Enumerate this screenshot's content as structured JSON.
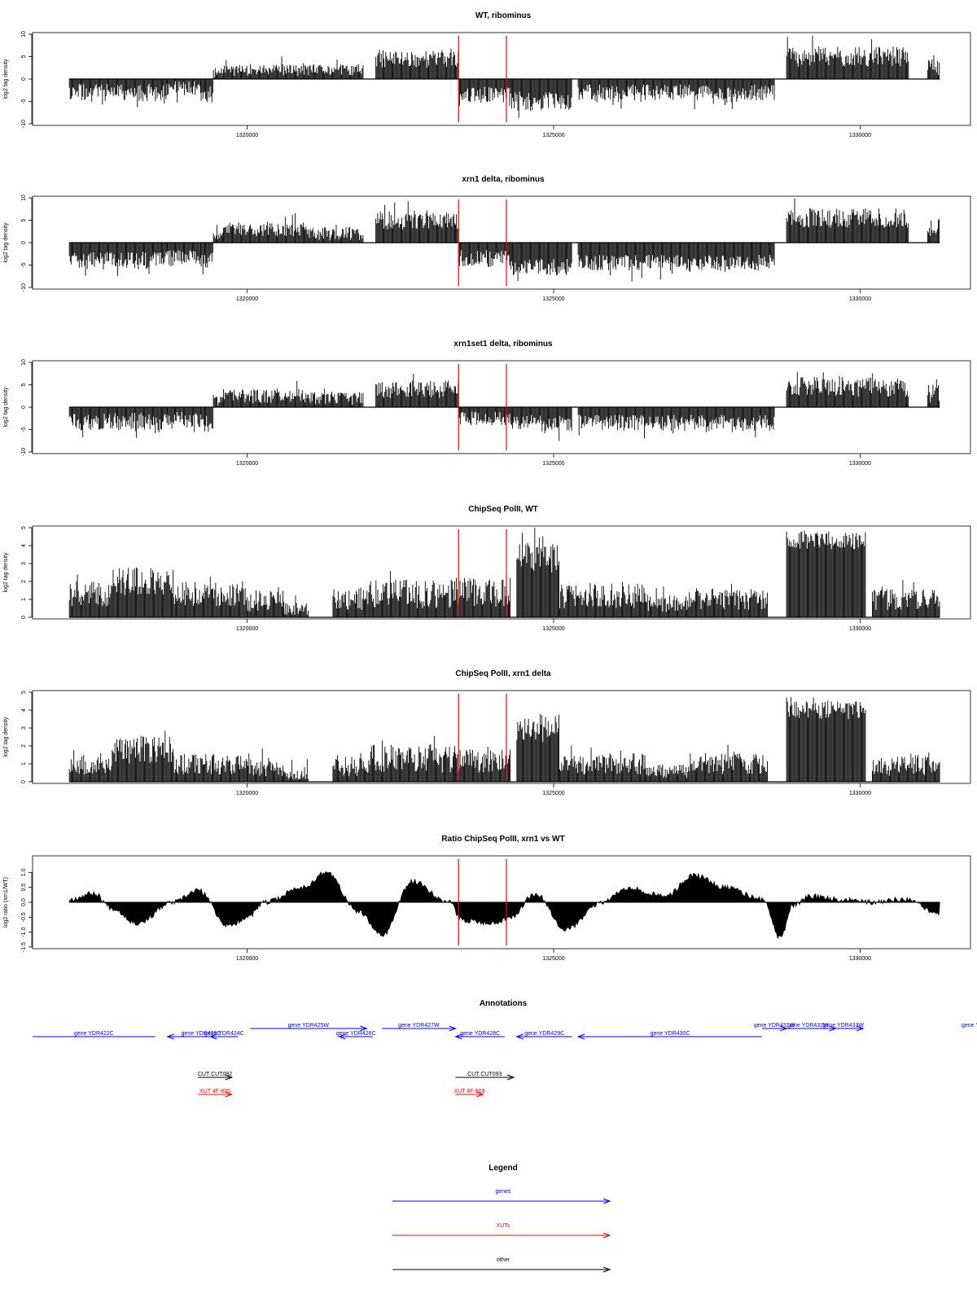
{
  "colors": {
    "gene": "#0000ff",
    "xut": "#ff0000",
    "other": "#000000",
    "marker": "#ff0000",
    "signal": "#000000"
  },
  "x_axis": {
    "range": [
      1316500,
      1331800
    ],
    "ticks": [
      1320000,
      1325000,
      1330000
    ],
    "tick_labels": [
      "1320000",
      "1325000",
      "1330000"
    ]
  },
  "markers": [
    1323450,
    1324230
  ],
  "chart_data": [
    {
      "type": "bar",
      "title": "WT, ribominus",
      "ylabel": "log2 tag density",
      "ylim": [
        -10,
        10
      ],
      "yticks": [
        -10,
        -5,
        0,
        5,
        10
      ],
      "ytick_labels": [
        "-10",
        "-5",
        "0",
        "5",
        "10"
      ],
      "signal_range": [
        1317100,
        1331300
      ],
      "seed": 11,
      "segments": [
        {
          "from": 1317100,
          "to": 1318700,
          "sign": -1,
          "mag": 3.0,
          "var": 2.0
        },
        {
          "from": 1318700,
          "to": 1319250,
          "sign": -1,
          "mag": 2.0,
          "var": 1.6
        },
        {
          "from": 1319250,
          "to": 1319450,
          "sign": -1,
          "mag": 3.5,
          "var": 1.8
        },
        {
          "from": 1319450,
          "to": 1319600,
          "sign": 1,
          "mag": 1.5,
          "var": 1.2
        },
        {
          "from": 1319600,
          "to": 1321000,
          "sign": 1,
          "mag": 2.0,
          "var": 1.3
        },
        {
          "from": 1321000,
          "to": 1321900,
          "sign": 1,
          "mag": 2.0,
          "var": 1.3
        },
        {
          "from": 1322100,
          "to": 1323450,
          "sign": 1,
          "mag": 4.5,
          "var": 2.0
        },
        {
          "from": 1323450,
          "to": 1324300,
          "sign": -1,
          "mag": 3.5,
          "var": 1.8
        },
        {
          "from": 1324300,
          "to": 1325300,
          "sign": -1,
          "mag": 5.0,
          "var": 2.2
        },
        {
          "from": 1325400,
          "to": 1328600,
          "sign": -1,
          "mag": 3.0,
          "var": 1.8
        },
        {
          "from": 1328800,
          "to": 1330800,
          "sign": 1,
          "mag": 5.0,
          "var": 2.3
        },
        {
          "from": 1331100,
          "to": 1331300,
          "sign": 1,
          "mag": 2.5,
          "var": 2.0
        }
      ]
    },
    {
      "type": "bar",
      "title": "xrn1 delta, ribominus",
      "ylabel": "log2 tag density",
      "ylim": [
        -10,
        10
      ],
      "yticks": [
        -10,
        -5,
        0,
        5,
        10
      ],
      "ytick_labels": [
        "-10",
        "-5",
        "0",
        "5",
        "10"
      ],
      "signal_range": [
        1317100,
        1331300
      ],
      "seed": 23,
      "segments": [
        {
          "from": 1317100,
          "to": 1318700,
          "sign": -1,
          "mag": 4.0,
          "var": 2.0
        },
        {
          "from": 1318700,
          "to": 1319250,
          "sign": -1,
          "mag": 3.5,
          "var": 1.8
        },
        {
          "from": 1319250,
          "to": 1319450,
          "sign": -1,
          "mag": 4.0,
          "var": 1.8
        },
        {
          "from": 1319450,
          "to": 1319600,
          "sign": 1,
          "mag": 1.5,
          "var": 1.2
        },
        {
          "from": 1319600,
          "to": 1321000,
          "sign": 1,
          "mag": 3.0,
          "var": 1.6
        },
        {
          "from": 1321000,
          "to": 1321900,
          "sign": 1,
          "mag": 2.0,
          "var": 1.5
        },
        {
          "from": 1322100,
          "to": 1323450,
          "sign": 1,
          "mag": 5.0,
          "var": 2.0
        },
        {
          "from": 1323450,
          "to": 1324300,
          "sign": -1,
          "mag": 3.5,
          "var": 2.0
        },
        {
          "from": 1324300,
          "to": 1325300,
          "sign": -1,
          "mag": 5.5,
          "var": 2.0
        },
        {
          "from": 1325400,
          "to": 1328600,
          "sign": -1,
          "mag": 4.5,
          "var": 1.8
        },
        {
          "from": 1328800,
          "to": 1330800,
          "sign": 1,
          "mag": 5.5,
          "var": 2.2
        },
        {
          "from": 1331100,
          "to": 1331300,
          "sign": 1,
          "mag": 3.5,
          "var": 2.3
        }
      ]
    },
    {
      "type": "bar",
      "title": "xrn1set1 delta, ribominus",
      "ylabel": "log2 tag density",
      "ylim": [
        -10,
        10
      ],
      "yticks": [
        -10,
        -5,
        0,
        5,
        10
      ],
      "ytick_labels": [
        "-10",
        "-5",
        "0",
        "5",
        "10"
      ],
      "signal_range": [
        1317100,
        1331300
      ],
      "seed": 37,
      "segments": [
        {
          "from": 1317100,
          "to": 1318700,
          "sign": -1,
          "mag": 3.2,
          "var": 2.0
        },
        {
          "from": 1318700,
          "to": 1319250,
          "sign": -1,
          "mag": 2.8,
          "var": 1.8
        },
        {
          "from": 1319250,
          "to": 1319450,
          "sign": -1,
          "mag": 3.5,
          "var": 2.0
        },
        {
          "from": 1319450,
          "to": 1319600,
          "sign": 1,
          "mag": 1.5,
          "var": 1.2
        },
        {
          "from": 1319600,
          "to": 1321000,
          "sign": 1,
          "mag": 2.5,
          "var": 1.6
        },
        {
          "from": 1321000,
          "to": 1321900,
          "sign": 1,
          "mag": 2.0,
          "var": 1.5
        },
        {
          "from": 1322100,
          "to": 1323450,
          "sign": 1,
          "mag": 4.0,
          "var": 2.0
        },
        {
          "from": 1323450,
          "to": 1324300,
          "sign": -1,
          "mag": 2.5,
          "var": 1.6
        },
        {
          "from": 1324300,
          "to": 1325300,
          "sign": -1,
          "mag": 3.5,
          "var": 1.8
        },
        {
          "from": 1325400,
          "to": 1328600,
          "sign": -1,
          "mag": 3.5,
          "var": 1.8
        },
        {
          "from": 1328800,
          "to": 1330800,
          "sign": 1,
          "mag": 4.5,
          "var": 2.2
        },
        {
          "from": 1331100,
          "to": 1331300,
          "sign": 1,
          "mag": 3.0,
          "var": 2.5
        }
      ]
    },
    {
      "type": "bar",
      "title": "ChipSeq PolII, WT",
      "ylabel": "log2 tag density",
      "ylim": [
        0,
        5
      ],
      "yticks": [
        0,
        1,
        2,
        3,
        4,
        5
      ],
      "ytick_labels": [
        "0",
        "1",
        "2",
        "3",
        "4",
        "5"
      ],
      "signal_range": [
        1317100,
        1331300
      ],
      "seed": 41,
      "segments": [
        {
          "from": 1317100,
          "to": 1317800,
          "sign": 1,
          "mag": 1.3,
          "var": 0.7
        },
        {
          "from": 1317800,
          "to": 1318800,
          "sign": 1,
          "mag": 2.0,
          "var": 0.8
        },
        {
          "from": 1318800,
          "to": 1320000,
          "sign": 1,
          "mag": 1.3,
          "var": 0.7
        },
        {
          "from": 1320000,
          "to": 1320600,
          "sign": 1,
          "mag": 0.9,
          "var": 0.6
        },
        {
          "from": 1320600,
          "to": 1321000,
          "sign": 1,
          "mag": 0.4,
          "var": 0.4
        },
        {
          "from": 1321400,
          "to": 1322000,
          "sign": 1,
          "mag": 1.0,
          "var": 0.6
        },
        {
          "from": 1322000,
          "to": 1323400,
          "sign": 1,
          "mag": 1.3,
          "var": 0.8
        },
        {
          "from": 1323400,
          "to": 1324300,
          "sign": 1,
          "mag": 1.4,
          "var": 0.8
        },
        {
          "from": 1324400,
          "to": 1325100,
          "sign": 1,
          "mag": 3.3,
          "var": 0.8
        },
        {
          "from": 1325100,
          "to": 1326500,
          "sign": 1,
          "mag": 1.2,
          "var": 0.7
        },
        {
          "from": 1326500,
          "to": 1327200,
          "sign": 1,
          "mag": 0.8,
          "var": 0.5
        },
        {
          "from": 1327200,
          "to": 1328500,
          "sign": 1,
          "mag": 1.0,
          "var": 0.6
        },
        {
          "from": 1328800,
          "to": 1330100,
          "sign": 1,
          "mag": 4.3,
          "var": 0.5
        },
        {
          "from": 1330200,
          "to": 1331300,
          "sign": 1,
          "mag": 1.0,
          "var": 0.6
        }
      ]
    },
    {
      "type": "bar",
      "title": "ChipSeq PolII, xrn1 delta",
      "ylabel": "log2 tag density",
      "ylim": [
        0,
        5
      ],
      "yticks": [
        0,
        1,
        2,
        3,
        4,
        5
      ],
      "ytick_labels": [
        "0",
        "1",
        "2",
        "3",
        "4",
        "5"
      ],
      "signal_range": [
        1317100,
        1331300
      ],
      "seed": 53,
      "segments": [
        {
          "from": 1317100,
          "to": 1317800,
          "sign": 1,
          "mag": 1.0,
          "var": 0.6
        },
        {
          "from": 1317800,
          "to": 1318800,
          "sign": 1,
          "mag": 1.8,
          "var": 0.8
        },
        {
          "from": 1318800,
          "to": 1320000,
          "sign": 1,
          "mag": 1.0,
          "var": 0.6
        },
        {
          "from": 1320000,
          "to": 1320600,
          "sign": 1,
          "mag": 0.7,
          "var": 0.5
        },
        {
          "from": 1320600,
          "to": 1321000,
          "sign": 1,
          "mag": 0.4,
          "var": 0.4
        },
        {
          "from": 1321400,
          "to": 1322000,
          "sign": 1,
          "mag": 0.9,
          "var": 0.6
        },
        {
          "from": 1322000,
          "to": 1323400,
          "sign": 1,
          "mag": 1.3,
          "var": 0.8
        },
        {
          "from": 1323400,
          "to": 1324300,
          "sign": 1,
          "mag": 1.2,
          "var": 0.7
        },
        {
          "from": 1324400,
          "to": 1325100,
          "sign": 1,
          "mag": 3.0,
          "var": 0.8
        },
        {
          "from": 1325100,
          "to": 1326500,
          "sign": 1,
          "mag": 1.0,
          "var": 0.6
        },
        {
          "from": 1326500,
          "to": 1327200,
          "sign": 1,
          "mag": 0.6,
          "var": 0.4
        },
        {
          "from": 1327200,
          "to": 1328500,
          "sign": 1,
          "mag": 1.0,
          "var": 0.6
        },
        {
          "from": 1328800,
          "to": 1330100,
          "sign": 1,
          "mag": 4.0,
          "var": 0.5
        },
        {
          "from": 1330200,
          "to": 1331300,
          "sign": 1,
          "mag": 0.9,
          "var": 0.6
        }
      ]
    },
    {
      "type": "area",
      "title": "Ratio ChipSeq PolII, xrn1 vs WT",
      "ylabel": "log2 ratio (xrn1/WT)",
      "ylim": [
        -1.5,
        1.5
      ],
      "yticks": [
        -1.5,
        -1.0,
        -0.5,
        0.0,
        0.5,
        1.0
      ],
      "ytick_labels": [
        "-1.5",
        "-1.0",
        "-0.5",
        "0.0",
        "0.5",
        "1.0"
      ],
      "signal_range": [
        1317100,
        1331300
      ],
      "seed": 67,
      "x": [
        1317100,
        1317500,
        1317800,
        1318200,
        1318800,
        1319200,
        1319700,
        1320000,
        1320300,
        1320900,
        1321300,
        1321800,
        1322200,
        1322700,
        1323300,
        1323500,
        1324000,
        1324300,
        1324700,
        1325200,
        1325800,
        1326200,
        1326800,
        1327300,
        1327800,
        1328400,
        1328700,
        1328900,
        1329200,
        1329700,
        1330200,
        1330700,
        1331300
      ],
      "y": [
        0.1,
        0.3,
        -0.2,
        -0.7,
        0.0,
        0.4,
        -0.8,
        -0.5,
        0.0,
        0.5,
        1.0,
        -0.3,
        -1.1,
        0.7,
        0.0,
        -0.6,
        -0.7,
        -0.5,
        0.3,
        -0.9,
        0.0,
        0.5,
        0.2,
        0.9,
        0.5,
        0.1,
        -1.2,
        -0.1,
        0.2,
        0.1,
        0.0,
        0.1,
        -0.4
      ]
    }
  ],
  "annotations": {
    "title": "Annotations",
    "genes": [
      {
        "label": "gene YDR422C",
        "from": 1316500,
        "to": 1318500,
        "dir": "none",
        "row": "low"
      },
      {
        "label": "gene YDR423C",
        "from": 1318700,
        "to": 1319800,
        "dir": "left",
        "row": "low"
      },
      {
        "label": "gene YDR424C",
        "from": 1319400,
        "to": 1319850,
        "dir": "left",
        "row": "low"
      },
      {
        "label": "gene YDR425W",
        "from": 1320050,
        "to": 1321950,
        "dir": "right",
        "row": "high"
      },
      {
        "label": "gene YDR426C",
        "from": 1321500,
        "to": 1322050,
        "dir": "left",
        "row": "low"
      },
      {
        "label": "gene YDR427W",
        "from": 1322200,
        "to": 1323400,
        "dir": "right",
        "row": "high"
      },
      {
        "label": "gene YDR428C",
        "from": 1323400,
        "to": 1324200,
        "dir": "left",
        "row": "low"
      },
      {
        "label": "gene YDR429C",
        "from": 1324400,
        "to": 1325300,
        "dir": "left",
        "row": "low"
      },
      {
        "label": "gene YDR430C",
        "from": 1325400,
        "to": 1328400,
        "dir": "left",
        "row": "low"
      },
      {
        "label": "gene YDR431W",
        "from": 1328400,
        "to": 1328800,
        "dir": "right",
        "row": "high"
      },
      {
        "label": "gene YDR432W",
        "from": 1328700,
        "to": 1329600,
        "dir": "right",
        "row": "high"
      },
      {
        "label": "gene YDR433W",
        "from": 1329400,
        "to": 1330050,
        "dir": "right",
        "row": "high"
      },
      {
        "label": "gene Y",
        "from": 1331800,
        "to": 1332200,
        "dir": "none",
        "row": "high"
      }
    ],
    "cuts": [
      {
        "label": "CUT CUT092",
        "from": 1319200,
        "to": 1319750,
        "color": "other"
      },
      {
        "label": "CUT CUT093",
        "from": 1323400,
        "to": 1324350,
        "color": "other"
      }
    ],
    "xuts": [
      {
        "label": "XUT 4F-805",
        "from": 1319200,
        "to": 1319750,
        "color": "xut"
      },
      {
        "label": "XUT 4F-809",
        "from": 1323400,
        "to": 1323850,
        "color": "xut"
      }
    ]
  },
  "legend": {
    "title": "Legend",
    "entries": [
      {
        "label": "genes",
        "color": "gene"
      },
      {
        "label": "XUTs",
        "color": "xut"
      },
      {
        "label": "other",
        "color": "other"
      }
    ]
  }
}
